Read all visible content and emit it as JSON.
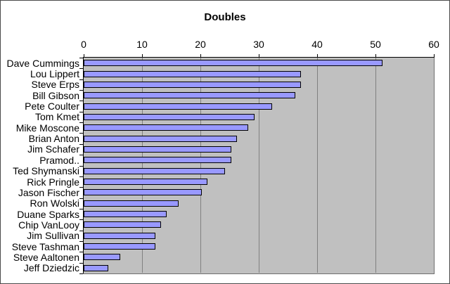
{
  "window": {
    "background": "#FFFFFF",
    "border_color": "#4A4A4A"
  },
  "chart_data": {
    "type": "bar",
    "orientation": "horizontal",
    "title": "Doubles",
    "categories": [
      "Dave Cummings",
      "Lou Lippert",
      "Steve Erps",
      "Bill Gibson",
      "Pete Coulter",
      "Tom Kmet",
      "Mike Moscone",
      "Brian Anton",
      "Jim Schafer",
      "Pramod..",
      "Ted Shymanski",
      "Rick Pringle",
      "Jason Fischer",
      "Ron Wolski",
      "Duane Sparks",
      "Chip VanLooy",
      "Jim Sullivan",
      "Steve Tashman",
      "Steve Aaltonen",
      "Jeff Dziedzic"
    ],
    "values": [
      51,
      37,
      37,
      36,
      32,
      29,
      28,
      26,
      25,
      25,
      24,
      21,
      20,
      16,
      14,
      13,
      12,
      12,
      6,
      4
    ],
    "xlabel": "",
    "ylabel": "",
    "xlim": [
      0,
      60
    ],
    "xticks": [
      0,
      10,
      20,
      30,
      40,
      50,
      60
    ],
    "grid": true,
    "legend": false,
    "colors": {
      "bar_fill": "#9999FF",
      "bar_border": "#000000",
      "plot_background": "#C0C0C0",
      "gridline": "#808080",
      "axis_line": "#000000",
      "text": "#000000"
    }
  }
}
